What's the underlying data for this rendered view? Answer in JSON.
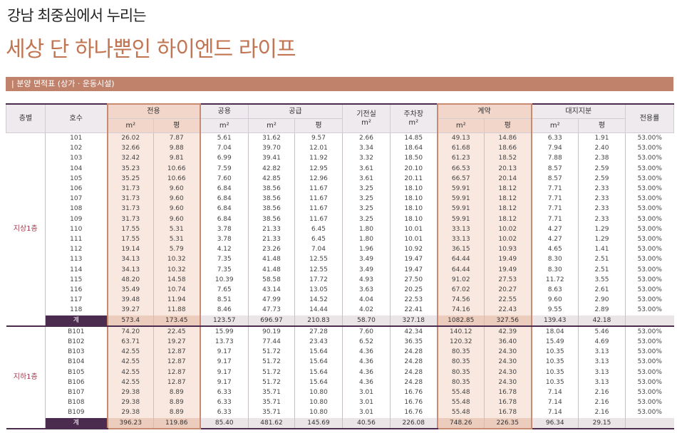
{
  "header": {
    "subtitle": "강남 최중심에서 누리는",
    "title": "세상 단 하나뿐인 하이엔드 라이프"
  },
  "section_label": "| 분양 면적표 (상가 · 운동시설)",
  "table": {
    "headers": [
      {
        "label": "층별"
      },
      {
        "label": "호수"
      },
      {
        "label": "전용",
        "units": [
          "m²",
          "평"
        ]
      },
      {
        "label": "공용",
        "units": [
          "m²"
        ]
      },
      {
        "label": "공급",
        "units": [
          "m²",
          "평"
        ]
      },
      {
        "label": "기전실",
        "units": [
          "m²"
        ]
      },
      {
        "label": "주차장",
        "units": [
          "m²"
        ]
      },
      {
        "label": "계약",
        "units": [
          "m²",
          "평"
        ]
      },
      {
        "label": "대지지분",
        "units": [
          "m²",
          "평"
        ]
      },
      {
        "label": "전용률"
      }
    ],
    "groups": [
      {
        "floor": "지상1층",
        "rows": [
          [
            "101",
            "26.02",
            "7.87",
            "5.61",
            "31.62",
            "9.57",
            "2.66",
            "14.85",
            "49.13",
            "14.86",
            "6.33",
            "1.91",
            "53.00%"
          ],
          [
            "102",
            "32.66",
            "9.88",
            "7.04",
            "39.70",
            "12.01",
            "3.34",
            "18.64",
            "61.68",
            "18.66",
            "7.94",
            "2.40",
            "53.00%"
          ],
          [
            "103",
            "32.42",
            "9.81",
            "6.99",
            "39.41",
            "11.92",
            "3.32",
            "18.50",
            "61.23",
            "18.52",
            "7.88",
            "2.38",
            "53.00%"
          ],
          [
            "104",
            "35.23",
            "10.66",
            "7.59",
            "42.82",
            "12.95",
            "3.61",
            "20.10",
            "66.53",
            "20.13",
            "8.57",
            "2.59",
            "53.00%"
          ],
          [
            "105",
            "35.25",
            "10.66",
            "7.60",
            "42.85",
            "12.96",
            "3.61",
            "20.11",
            "66.57",
            "20.14",
            "8.57",
            "2.59",
            "53.00%"
          ],
          [
            "106",
            "31.73",
            "9.60",
            "6.84",
            "38.56",
            "11.67",
            "3.25",
            "18.10",
            "59.91",
            "18.12",
            "7.71",
            "2.33",
            "53.00%"
          ],
          [
            "107",
            "31.73",
            "9.60",
            "6.84",
            "38.56",
            "11.67",
            "3.25",
            "18.10",
            "59.91",
            "18.12",
            "7.71",
            "2.33",
            "53.00%"
          ],
          [
            "108",
            "31.73",
            "9.60",
            "6.84",
            "38.56",
            "11.67",
            "3.25",
            "18.10",
            "59.91",
            "18.12",
            "7.71",
            "2.33",
            "53.00%"
          ],
          [
            "109",
            "31.73",
            "9.60",
            "6.84",
            "38.56",
            "11.67",
            "3.25",
            "18.10",
            "59.91",
            "18.12",
            "7.71",
            "2.33",
            "53.00%"
          ],
          [
            "110",
            "17.55",
            "5.31",
            "3.78",
            "21.33",
            "6.45",
            "1.80",
            "10.01",
            "33.13",
            "10.02",
            "4.27",
            "1.29",
            "53.00%"
          ],
          [
            "111",
            "17.55",
            "5.31",
            "3.78",
            "21.33",
            "6.45",
            "1.80",
            "10.01",
            "33.13",
            "10.02",
            "4.27",
            "1.29",
            "53.00%"
          ],
          [
            "112",
            "19.14",
            "5.79",
            "4.12",
            "23.26",
            "7.04",
            "1.96",
            "10.92",
            "36.15",
            "10.93",
            "4.65",
            "1.41",
            "53.00%"
          ],
          [
            "113",
            "34.13",
            "10.32",
            "7.35",
            "41.48",
            "12.55",
            "3.49",
            "19.47",
            "64.44",
            "19.49",
            "8.30",
            "2.51",
            "53.00%"
          ],
          [
            "114",
            "34.13",
            "10.32",
            "7.35",
            "41.48",
            "12.55",
            "3.49",
            "19.47",
            "64.44",
            "19.49",
            "8.30",
            "2.51",
            "53.00%"
          ],
          [
            "115",
            "48.20",
            "14.58",
            "10.39",
            "58.58",
            "17.72",
            "4.93",
            "27.50",
            "91.02",
            "27.53",
            "11.72",
            "3.55",
            "53.00%"
          ],
          [
            "116",
            "35.49",
            "10.74",
            "7.65",
            "43.14",
            "13.05",
            "3.63",
            "20.25",
            "67.02",
            "20.27",
            "8.63",
            "2.61",
            "53.00%"
          ],
          [
            "117",
            "39.48",
            "11.94",
            "8.51",
            "47.99",
            "14.52",
            "4.04",
            "22.53",
            "74.56",
            "22.55",
            "9.60",
            "2.90",
            "53.00%"
          ],
          [
            "118",
            "39.27",
            "11.88",
            "8.46",
            "47.73",
            "14.44",
            "4.02",
            "22.41",
            "74.16",
            "22.43",
            "9.55",
            "2.89",
            "53.00%"
          ]
        ],
        "total": [
          "계",
          "573.4",
          "173.45",
          "123.57",
          "696.97",
          "210.83",
          "58.70",
          "327.18",
          "1082.85",
          "327.56",
          "139.43",
          "42.18"
        ]
      },
      {
        "floor": "지하1층",
        "rows": [
          [
            "B101",
            "74.20",
            "22.45",
            "15.99",
            "90.19",
            "27.28",
            "7.60",
            "42.34",
            "140.12",
            "42.39",
            "18.04",
            "5.46",
            "53.00%"
          ],
          [
            "B102",
            "63.71",
            "19.27",
            "13.73",
            "77.44",
            "23.43",
            "6.52",
            "36.35",
            "120.32",
            "36.40",
            "15.49",
            "4.69",
            "53.00%"
          ],
          [
            "B103",
            "42.55",
            "12.87",
            "9.17",
            "51.72",
            "15.64",
            "4.36",
            "24.28",
            "80.35",
            "24.30",
            "10.35",
            "3.13",
            "53.00%"
          ],
          [
            "B104",
            "42.55",
            "12.87",
            "9.17",
            "51.72",
            "15.64",
            "4.36",
            "24.28",
            "80.35",
            "24.30",
            "10.35",
            "3.13",
            "53.00%"
          ],
          [
            "B105",
            "42.55",
            "12.87",
            "9.17",
            "51.72",
            "15.64",
            "4.36",
            "24.28",
            "80.35",
            "24.30",
            "10.35",
            "3.13",
            "53.00%"
          ],
          [
            "B106",
            "42.55",
            "12.87",
            "9.17",
            "51.72",
            "15.64",
            "4.36",
            "24.28",
            "80.35",
            "24.30",
            "10.35",
            "3.13",
            "53.00%"
          ],
          [
            "B107",
            "29.38",
            "8.89",
            "6.33",
            "35.71",
            "10.80",
            "3.01",
            "16.76",
            "55.48",
            "16.78",
            "7.14",
            "2.16",
            "53.00%"
          ],
          [
            "B108",
            "29.38",
            "8.89",
            "6.33",
            "35.71",
            "10.80",
            "3.01",
            "16.76",
            "55.48",
            "16.78",
            "7.14",
            "2.16",
            "53.00%"
          ],
          [
            "B109",
            "29.38",
            "8.89",
            "6.33",
            "35.71",
            "10.80",
            "3.01",
            "16.76",
            "55.48",
            "16.78",
            "7.14",
            "2.16",
            "53.00%"
          ]
        ],
        "total": [
          "계",
          "396.23",
          "119.86",
          "85.40",
          "481.62",
          "145.69",
          "40.56",
          "226.08",
          "748.26",
          "226.35",
          "96.34",
          "29.15"
        ]
      }
    ]
  }
}
